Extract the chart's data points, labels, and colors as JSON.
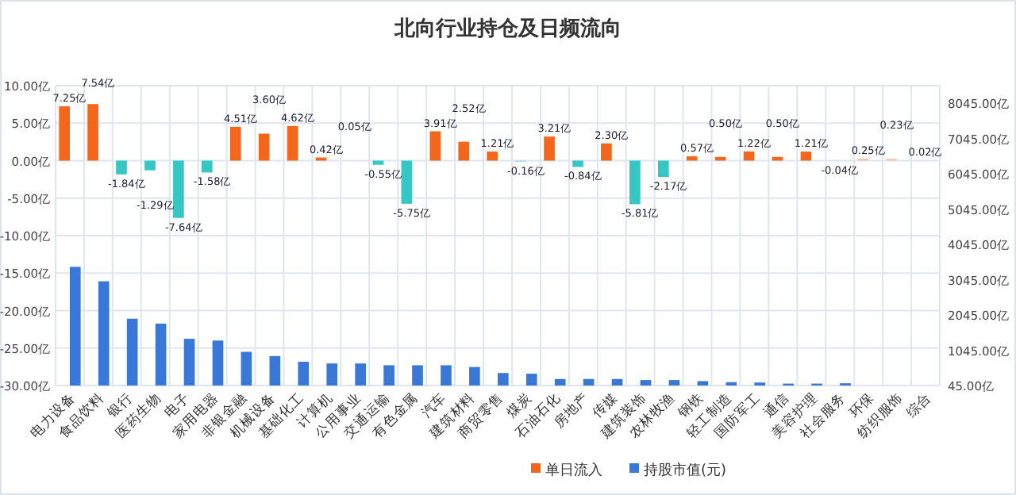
{
  "chart_data": {
    "type": "bar",
    "title": "北向行业持仓及日频流向",
    "categories": [
      "电力设备",
      "食品饮料",
      "银行",
      "医药生物",
      "电子",
      "家用电器",
      "非银金融",
      "机械设备",
      "基础化工",
      "计算机",
      "公用事业",
      "交通运输",
      "有色金属",
      "汽车",
      "建筑材料",
      "商贸零售",
      "煤炭",
      "石油石化",
      "房地产",
      "传媒",
      "建筑装饰",
      "农林牧渔",
      "钢铁",
      "轻工制造",
      "国防军工",
      "通信",
      "美容护理",
      "社会服务",
      "环保",
      "纺织服饰",
      "综合"
    ],
    "series": [
      {
        "name": "单日流入",
        "color": "#f4661b",
        "values": [
          7.25,
          7.54,
          -1.84,
          -1.29,
          -7.64,
          -1.58,
          4.51,
          3.6,
          4.62,
          0.42,
          0.05,
          -0.55,
          -5.75,
          3.91,
          2.52,
          1.21,
          -0.16,
          3.21,
          -0.84,
          2.3,
          -5.81,
          -2.17,
          0.57,
          0.5,
          1.22,
          0.5,
          1.21,
          -0.04,
          0.25,
          0.23,
          0.02
        ],
        "colors": [
          "#f4661b",
          "#f4661b",
          "#36c6c4",
          "#36c6c4",
          "#36c6c4",
          "#36c6c4",
          "#f4661b",
          "#f4661b",
          "#f4661b",
          "#f4661b",
          "#ece4de",
          "#36c6c4",
          "#36c6c4",
          "#f4661b",
          "#f4661b",
          "#f4661b",
          "#9fdedd",
          "#f4661b",
          "#36c6c4",
          "#f4661b",
          "#36c6c4",
          "#36c6c4",
          "#f4661b",
          "#f4661b",
          "#f4661b",
          "#f4661b",
          "#f4661b",
          "#c8ecec",
          "#f7c2a0",
          "#f7c2a0",
          "#eeeeee"
        ],
        "value_labels": [
          "7.25亿",
          "7.54亿",
          "-1.84亿",
          "-1.29亿",
          "-7.64亿",
          "-1.58亿",
          "4.51亿",
          "3.60亿",
          "4.62亿",
          "0.42亿",
          "0.05亿",
          "-0.55亿",
          "-5.75亿",
          "3.91亿",
          "2.52亿",
          "1.21亿",
          "-0.16亿",
          "3.21亿",
          "-0.84亿",
          "2.30亿",
          "-5.81亿",
          "-2.17亿",
          "0.57亿",
          "0.50亿",
          "1.22亿",
          "0.50亿",
          "1.21亿",
          "-0.04亿",
          "0.25亿",
          "0.23亿",
          "0.02亿"
        ]
      },
      {
        "name": "持股市值(元)",
        "color": "#3a78d8",
        "axis": "y2",
        "values": [
          3410,
          3000,
          1940,
          1800,
          1370,
          1320,
          1000,
          880,
          720,
          670,
          670,
          620,
          620,
          620,
          570,
          400,
          380,
          230,
          230,
          230,
          200,
          200,
          170,
          140,
          130,
          100,
          100,
          110,
          null,
          null,
          null
        ]
      }
    ],
    "ylim": [
      -30,
      10
    ],
    "yticks": [
      {
        "value": -30,
        "label": "-30.00亿"
      },
      {
        "value": -25,
        "label": "-25.00亿"
      },
      {
        "value": -20,
        "label": "-20.00亿"
      },
      {
        "value": -15,
        "label": "-15.00亿"
      },
      {
        "value": -10,
        "label": "-10.00亿"
      },
      {
        "value": -5,
        "label": "-5.00亿"
      },
      {
        "value": 0,
        "label": "0.00亿"
      },
      {
        "value": 5,
        "label": "5.00亿"
      },
      {
        "value": 10,
        "label": "10.00亿"
      }
    ],
    "y2lim": [
      45,
      8545
    ],
    "y2ticks": [
      {
        "value": 45,
        "label": "45.00亿"
      },
      {
        "value": 1045,
        "label": "1045.00亿"
      },
      {
        "value": 2045,
        "label": "2045.00亿"
      },
      {
        "value": 3045,
        "label": "3045.00亿"
      },
      {
        "value": 4045,
        "label": "4045.00亿"
      },
      {
        "value": 5045,
        "label": "5045.00亿"
      },
      {
        "value": 6045,
        "label": "6045.00亿"
      },
      {
        "value": 7045,
        "label": "7045.00亿"
      },
      {
        "value": 8045,
        "label": "8045.00亿"
      }
    ],
    "grid": true,
    "legend": "bottom"
  }
}
